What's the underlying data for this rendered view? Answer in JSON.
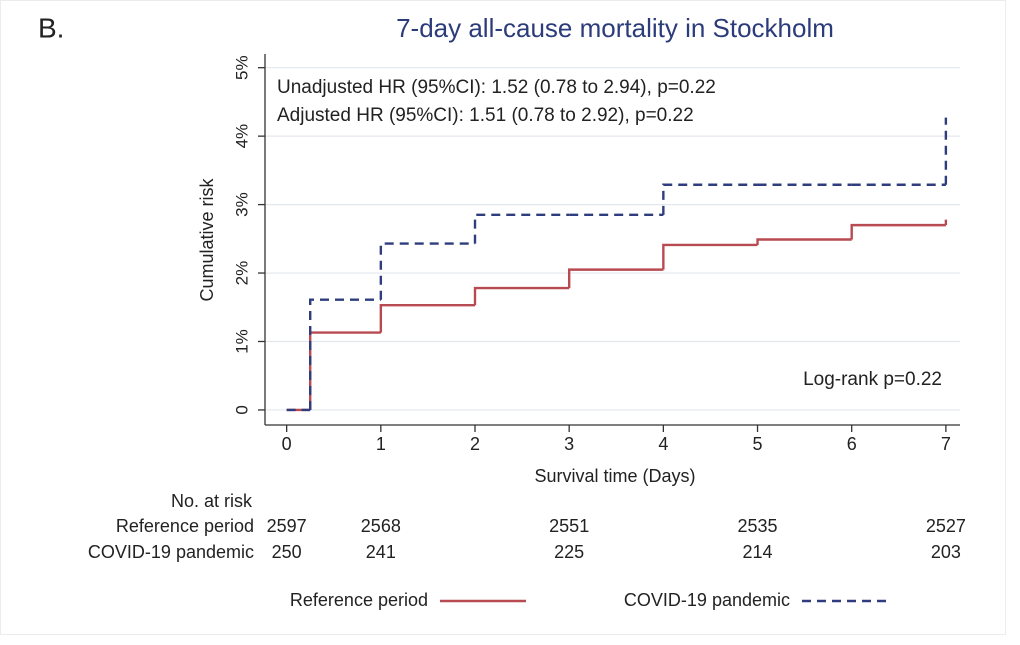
{
  "chart_data": {
    "type": "step",
    "panel_label": "B.",
    "title": "7-day all-cause mortality in Stockholm",
    "annotations": [
      "Unadjusted HR (95%CI): 1.52 (0.78 to 2.94), p=0.22",
      "Adjusted HR (95%CI): 1.51 (0.78 to 2.92), p=0.22"
    ],
    "logrank": "Log-rank p=0.22",
    "x_label": "Survival time (Days)",
    "y_label": "Cumulative risk",
    "x": [
      0,
      0.25,
      1,
      2,
      3,
      4,
      5,
      6,
      7
    ],
    "series": [
      {
        "name": "Reference period",
        "color": "#b84a51",
        "dash": false,
        "values": [
          0,
          1.13,
          1.53,
          1.78,
          2.05,
          2.41,
          2.49,
          2.7,
          2.78
        ]
      },
      {
        "name": "COVID-19 pandemic",
        "color": "#2f3d7e",
        "dash": true,
        "values": [
          0,
          1.61,
          2.43,
          2.85,
          2.85,
          3.29,
          3.29,
          3.29,
          4.27
        ]
      }
    ],
    "xlim": [
      -0.23,
      7.15
    ],
    "ylim": [
      -0.22,
      5.2
    ],
    "xticks": [
      0,
      1,
      2,
      3,
      4,
      5,
      6,
      7
    ],
    "yticks": [
      0,
      {
        "value": 1,
        "label": "1%"
      },
      {
        "value": 2,
        "label": "2%"
      },
      {
        "value": 3,
        "label": "3%"
      },
      {
        "value": 4,
        "label": "4%"
      },
      {
        "value": 5,
        "label": "5%"
      }
    ],
    "grid": true,
    "risk_table": {
      "header": "No. at risk",
      "at_times": [
        0,
        1,
        3,
        5,
        7
      ],
      "rows": [
        {
          "name": "Reference period",
          "values": [
            2597,
            2568,
            2551,
            2535,
            2527
          ]
        },
        {
          "name": "COVID-19 pandemic",
          "values": [
            250,
            241,
            225,
            214,
            203
          ]
        }
      ]
    }
  }
}
